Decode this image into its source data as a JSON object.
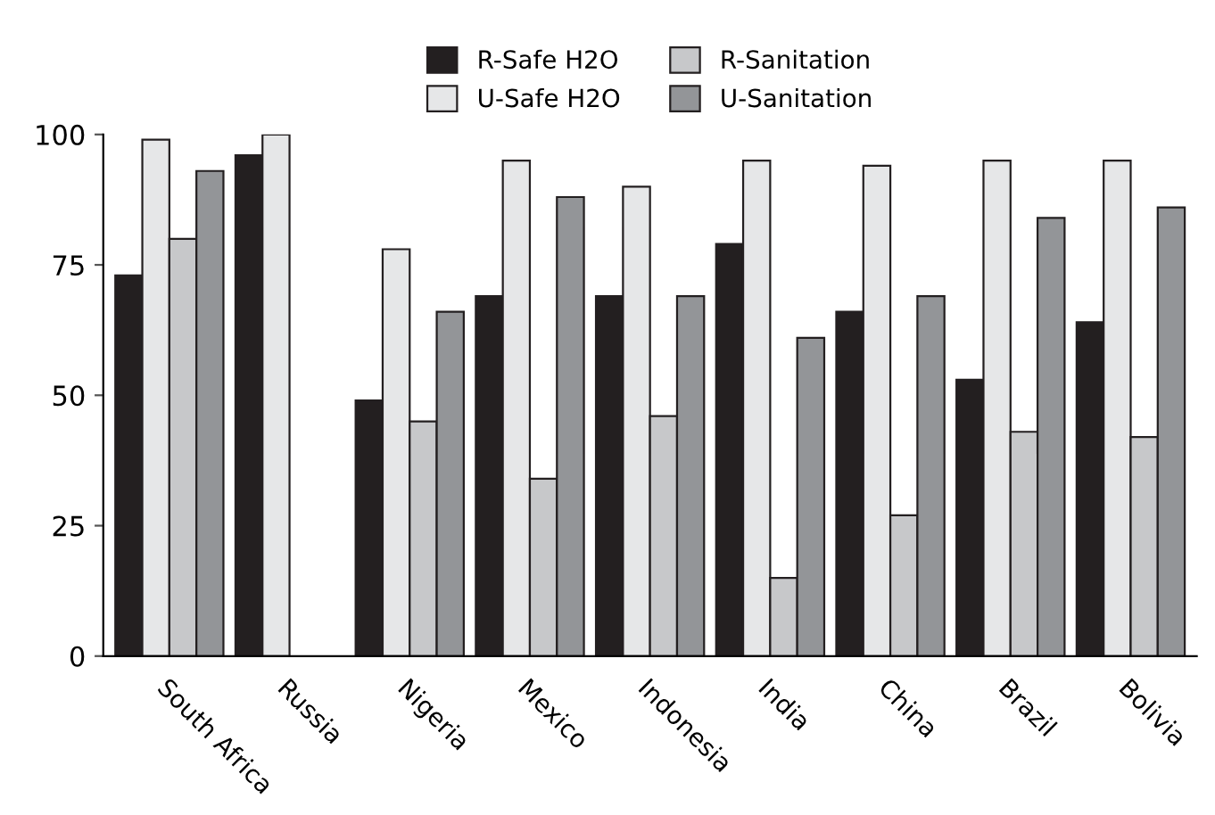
{
  "chart_data": {
    "type": "bar",
    "categories": [
      "South Africa",
      "Russia",
      "Nigeria",
      "Mexico",
      "Indonesia",
      "India",
      "China",
      "Brazil",
      "Bolivia"
    ],
    "series": [
      {
        "name": "R-Safe H2O",
        "color": "#231f20",
        "values": [
          73,
          96,
          49,
          69,
          69,
          79,
          66,
          53,
          64
        ]
      },
      {
        "name": "U-Safe H2O",
        "color": "#e6e7e8",
        "values": [
          99,
          100,
          78,
          95,
          90,
          95,
          94,
          95,
          95
        ]
      },
      {
        "name": "R-Sanitation",
        "color": "#c7c8ca",
        "values": [
          80,
          null,
          45,
          34,
          46,
          15,
          27,
          43,
          42
        ]
      },
      {
        "name": "U-Sanitation",
        "color": "#939598",
        "values": [
          93,
          null,
          66,
          88,
          69,
          61,
          69,
          84,
          86
        ]
      }
    ],
    "ylim": [
      0,
      100
    ],
    "yticks": [
      0,
      25,
      50,
      75,
      100
    ],
    "grid": false,
    "legend": "top"
  }
}
